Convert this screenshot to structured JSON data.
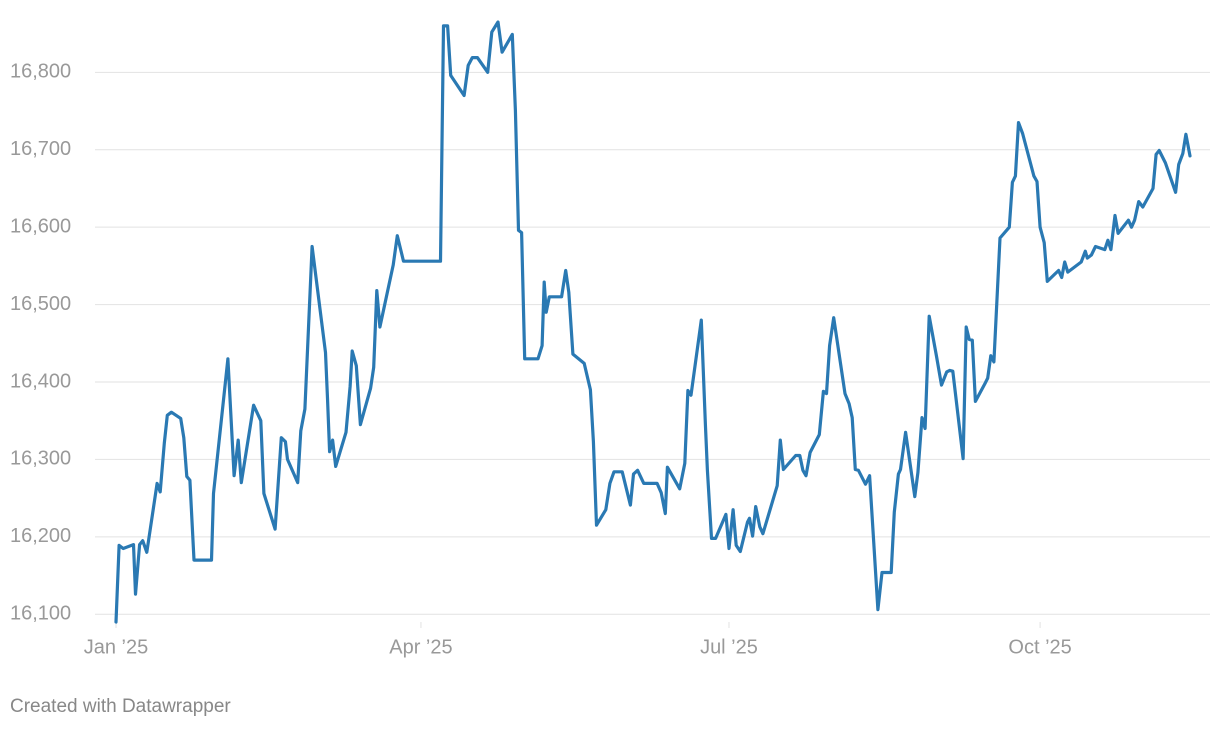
{
  "chart_data": {
    "type": "line",
    "color": "#2a79b3",
    "grid": true,
    "footer": "Created with Datawrapper",
    "xlim": [
      0,
      10.46
    ],
    "xticks": [
      {
        "value": 0,
        "label": "Jan ’25"
      },
      {
        "value": 2.97,
        "label": "Apr ’25"
      },
      {
        "value": 5.97,
        "label": "Jul ’25"
      },
      {
        "value": 9.0,
        "label": "Oct ’25"
      }
    ],
    "ylim": [
      16090,
      16865
    ],
    "yticks": [
      {
        "value": 16100,
        "label": "16,100"
      },
      {
        "value": 16200,
        "label": "16,200"
      },
      {
        "value": 16300,
        "label": "16,300"
      },
      {
        "value": 16400,
        "label": "16,400"
      },
      {
        "value": 16500,
        "label": "16,500"
      },
      {
        "value": 16600,
        "label": "16,600"
      },
      {
        "value": 16700,
        "label": "16,700"
      },
      {
        "value": 16800,
        "label": "16,800"
      }
    ],
    "x": [
      0,
      0.03,
      0.07,
      0.17,
      0.19,
      0.23,
      0.26,
      0.3,
      0.4,
      0.43,
      0.47,
      0.5,
      0.54,
      0.63,
      0.66,
      0.69,
      0.72,
      0.76,
      0.93,
      0.95,
      1.09,
      1.15,
      1.19,
      1.22,
      1.34,
      1.41,
      1.44,
      1.55,
      1.61,
      1.65,
      1.67,
      1.77,
      1.8,
      1.84,
      1.91,
      2.04,
      2.06,
      2.08,
      2.11,
      2.14,
      2.24,
      2.28,
      2.3,
      2.34,
      2.38,
      2.48,
      2.51,
      2.54,
      2.57,
      2.7,
      2.74,
      2.8,
      3.16,
      3.19,
      3.23,
      3.26,
      3.39,
      3.43,
      3.47,
      3.52,
      3.62,
      3.66,
      3.72,
      3.76,
      3.86,
      3.89,
      3.92,
      3.95,
      3.98,
      4.11,
      4.15,
      4.17,
      4.19,
      4.22,
      4.34,
      4.38,
      4.41,
      4.45,
      4.56,
      4.62,
      4.65,
      4.68,
      4.77,
      4.81,
      4.85,
      4.93,
      5.01,
      5.04,
      5.08,
      5.14,
      5.27,
      5.31,
      5.35,
      5.37,
      5.49,
      5.54,
      5.57,
      5.6,
      5.7,
      5.74,
      5.76,
      5.8,
      5.84,
      5.94,
      5.97,
      6.01,
      6.04,
      6.08,
      6.15,
      6.17,
      6.2,
      6.23,
      6.27,
      6.3,
      6.44,
      6.47,
      6.5,
      6.62,
      6.66,
      6.69,
      6.72,
      6.76,
      6.85,
      6.89,
      6.92,
      6.95,
      6.99,
      7.1,
      7.14,
      7.17,
      7.2,
      7.23,
      7.3,
      7.34,
      7.42,
      7.46,
      7.55,
      7.58,
      7.62,
      7.64,
      7.69,
      7.78,
      7.81,
      7.85,
      7.88,
      7.92,
      7.99,
      8.04,
      8.09,
      8.12,
      8.15,
      8.25,
      8.28,
      8.31,
      8.34,
      8.37,
      8.46,
      8.49,
      8.52,
      8.55,
      8.61,
      8.7,
      8.73,
      8.76,
      8.79,
      8.83,
      8.94,
      8.97,
      9.0,
      9.04,
      9.07,
      9.14,
      9.18,
      9.21,
      9.24,
      9.27,
      9.4,
      9.44,
      9.46,
      9.5,
      9.54,
      9.63,
      9.66,
      9.69,
      9.73,
      9.76,
      9.86,
      9.89,
      9.92,
      9.96,
      10.0,
      10.1,
      10.13,
      10.16,
      10.22,
      10.32,
      10.35,
      10.39,
      10.42,
      10.46
    ],
    "values": [
      16090,
      16189,
      16185,
      16190,
      16126,
      16190,
      16195,
      16180,
      16269,
      16258,
      16321,
      16357,
      16361,
      16353,
      16328,
      16278,
      16273,
      16170,
      16170,
      16256,
      16430,
      16279,
      16325,
      16270,
      16370,
      16350,
      16256,
      16210,
      16328,
      16323,
      16300,
      16270,
      16337,
      16365,
      16575,
      16438,
      16379,
      16310,
      16325,
      16291,
      16335,
      16394,
      16440,
      16421,
      16345,
      16392,
      16419,
      16518,
      16471,
      16551,
      16589,
      16556,
      16556,
      16860,
      16860,
      16796,
      16770,
      16809,
      16819,
      16819,
      16800,
      16852,
      16865,
      16826,
      16849,
      16751,
      16596,
      16593,
      16430,
      16430,
      16447,
      16529,
      16490,
      16510,
      16510,
      16544,
      16516,
      16436,
      16424,
      16390,
      16323,
      16215,
      16235,
      16269,
      16284,
      16284,
      16241,
      16281,
      16286,
      16269,
      16269,
      16257,
      16230,
      16290,
      16262,
      16295,
      16389,
      16383,
      16480,
      16345,
      16286,
      16198,
      16198,
      16229,
      16185,
      16235,
      16189,
      16181,
      16219,
      16224,
      16201,
      16239,
      16213,
      16204,
      16266,
      16325,
      16287,
      16305,
      16305,
      16286,
      16279,
      16309,
      16332,
      16388,
      16385,
      16447,
      16483,
      16385,
      16372,
      16354,
      16287,
      16286,
      16268,
      16279,
      16106,
      16154,
      16154,
      16232,
      16281,
      16287,
      16335,
      16252,
      16283,
      16354,
      16340,
      16485,
      16434,
      16396,
      16413,
      16415,
      16414,
      16301,
      16471,
      16455,
      16454,
      16375,
      16397,
      16405,
      16434,
      16426,
      16586,
      16600,
      16658,
      16666,
      16735,
      16721,
      16666,
      16659,
      16600,
      16580,
      16530,
      16539,
      16544,
      16535,
      16555,
      16542,
      16555,
      16569,
      16560,
      16564,
      16575,
      16571,
      16583,
      16571,
      16615,
      16592,
      16609,
      16600,
      16609,
      16633,
      16626,
      16650,
      16694,
      16699,
      16683,
      16645,
      16681,
      16695,
      16720,
      16692
    ]
  }
}
